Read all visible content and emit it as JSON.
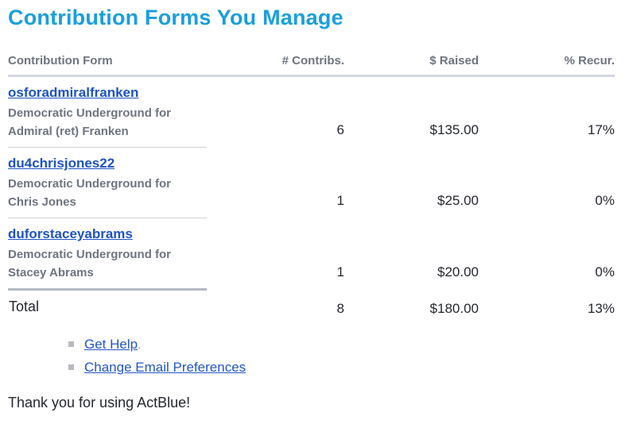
{
  "page": {
    "title": "Contribution Forms You Manage",
    "thank_you": "Thank you for using ActBlue!"
  },
  "table": {
    "headers": [
      "Contribution Form",
      "# Contribs.",
      "$ Raised",
      "% Recur."
    ],
    "rows": [
      {
        "form_name": "osforadmiralfranken",
        "description": "Democratic Underground for Admiral (ret) Franken",
        "contribs": "6",
        "raised": "$135.00",
        "recur": "17%"
      },
      {
        "form_name": "du4chrisjones22",
        "description": "Democratic Underground for Chris Jones",
        "contribs": "1",
        "raised": "$25.00",
        "recur": "0%"
      },
      {
        "form_name": "duforstaceyabrams",
        "description": "Democratic Underground for Stacey Abrams",
        "contribs": "1",
        "raised": "$20.00",
        "recur": "0%"
      }
    ],
    "total": {
      "label": "Total",
      "contribs": "8",
      "raised": "$180.00",
      "recur": "13%"
    }
  },
  "links": {
    "get_help": "Get Help",
    "get_help_suffix": ".",
    "change_email": "Change Email Preferences"
  },
  "colors": {
    "title_cyan": "#189fdd",
    "link_blue": "#1d53c4",
    "muted_gray": "#6e7480",
    "text_dark": "#24272e",
    "header_divider": "#d4d7de",
    "row_divider": "#d0d3d9",
    "total_divider": "#b2b9c4",
    "bullet_gray": "#b7bac0"
  }
}
